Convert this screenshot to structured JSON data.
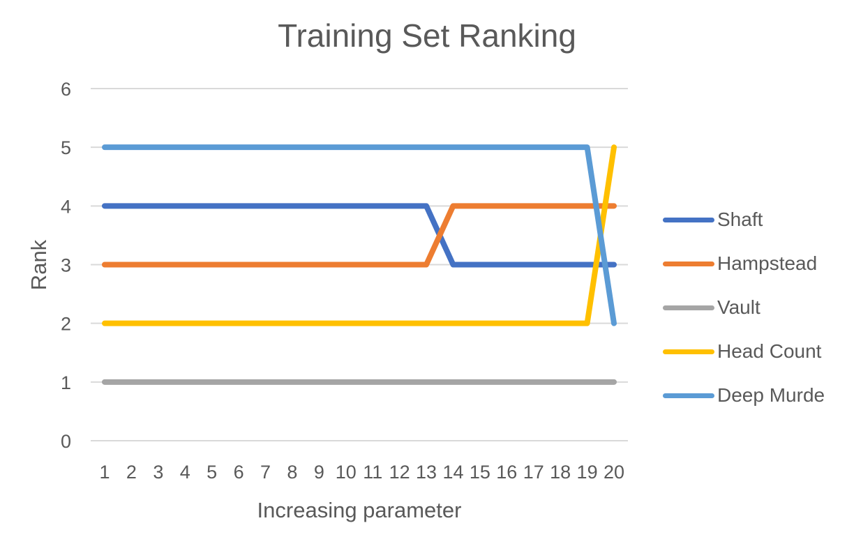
{
  "chart_data": {
    "type": "line",
    "title": "Training Set Ranking",
    "xlabel": "Increasing parameter",
    "ylabel": "Rank",
    "categories": [
      "1",
      "2",
      "3",
      "4",
      "5",
      "6",
      "7",
      "8",
      "9",
      "10",
      "11",
      "12",
      "13",
      "14",
      "15",
      "16",
      "17",
      "18",
      "19",
      "20"
    ],
    "ylim": [
      0,
      6
    ],
    "yticks": [
      "0",
      "1",
      "2",
      "3",
      "4",
      "5",
      "6"
    ],
    "grid": "horizontal",
    "legend_position": "right",
    "series": [
      {
        "name": "Shaft",
        "color": "#4472C4",
        "values": [
          4,
          4,
          4,
          4,
          4,
          4,
          4,
          4,
          4,
          4,
          4,
          4,
          4,
          3,
          3,
          3,
          3,
          3,
          3,
          3
        ]
      },
      {
        "name": "Hampstead",
        "color": "#ED7D31",
        "values": [
          3,
          3,
          3,
          3,
          3,
          3,
          3,
          3,
          3,
          3,
          3,
          3,
          3,
          4,
          4,
          4,
          4,
          4,
          4,
          4
        ]
      },
      {
        "name": "Vault",
        "color": "#A5A5A5",
        "values": [
          1,
          1,
          1,
          1,
          1,
          1,
          1,
          1,
          1,
          1,
          1,
          1,
          1,
          1,
          1,
          1,
          1,
          1,
          1,
          1
        ]
      },
      {
        "name": "Head Count",
        "color": "#FFC000",
        "values": [
          2,
          2,
          2,
          2,
          2,
          2,
          2,
          2,
          2,
          2,
          2,
          2,
          2,
          2,
          2,
          2,
          2,
          2,
          2,
          5
        ]
      },
      {
        "name": "Deep Murde",
        "color": "#5B9BD5",
        "values": [
          5,
          5,
          5,
          5,
          5,
          5,
          5,
          5,
          5,
          5,
          5,
          5,
          5,
          5,
          5,
          5,
          5,
          5,
          5,
          2
        ]
      }
    ]
  }
}
